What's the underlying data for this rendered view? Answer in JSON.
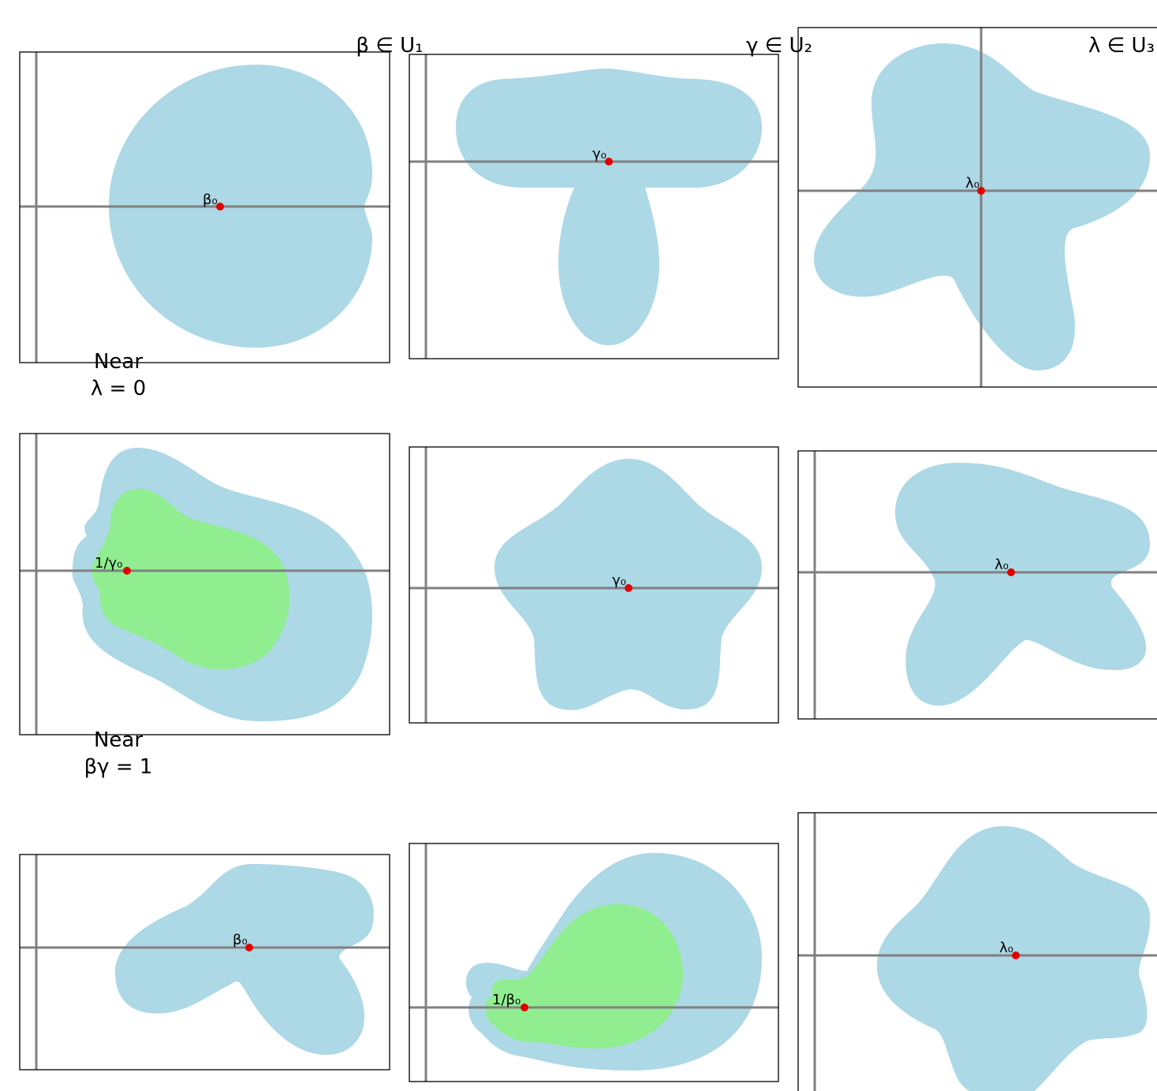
{
  "colors": {
    "region": "#add8e6",
    "subregion": "#90ee90",
    "axis": "#808080",
    "point": "#e00000",
    "frame": "#000000"
  },
  "column_titles": [
    "β ∈ U₁",
    "γ ∈ U₂",
    "λ ∈ U₃"
  ],
  "row_labels": [
    {
      "line1": "Near",
      "line2": "λ = 0"
    },
    {
      "line1": "Near",
      "line2": "βγ = 1"
    }
  ],
  "panels": [
    {
      "id": "r1c1",
      "point_label": "β₀",
      "has_subregion": false
    },
    {
      "id": "r1c2",
      "point_label": "γ₀",
      "has_subregion": false
    },
    {
      "id": "r1c3",
      "point_label": "λ₀",
      "has_subregion": false
    },
    {
      "id": "r2c1",
      "point_label": "1/γ₀",
      "has_subregion": true
    },
    {
      "id": "r2c2",
      "point_label": "γ₀",
      "has_subregion": false
    },
    {
      "id": "r2c3",
      "point_label": "λ₀",
      "has_subregion": false
    },
    {
      "id": "r3c1",
      "point_label": "β₀",
      "has_subregion": false
    },
    {
      "id": "r3c2",
      "point_label": "1/β₀",
      "has_subregion": true
    },
    {
      "id": "r3c3",
      "point_label": "λ₀",
      "has_subregion": false
    }
  ]
}
